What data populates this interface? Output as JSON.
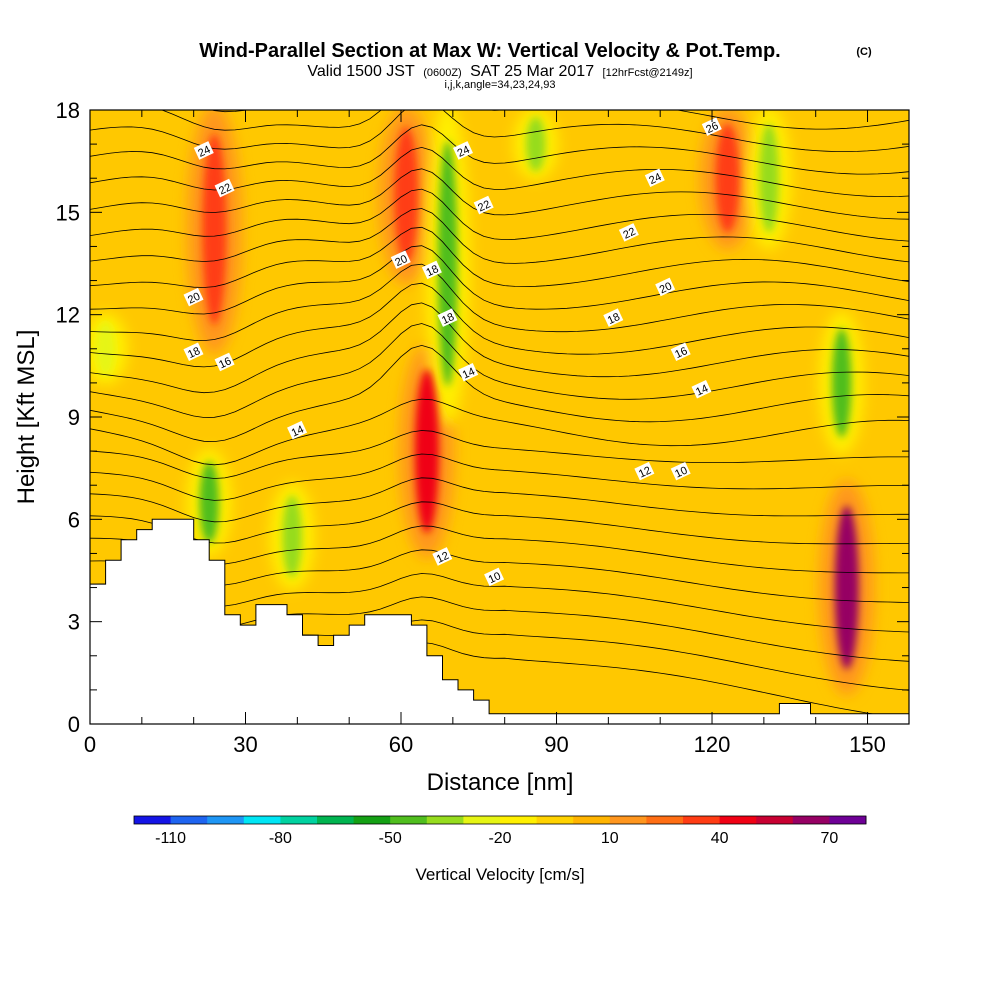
{
  "header": {
    "title": "Wind-Parallel Section at Max W: Vertical Velocity & Pot.Temp.",
    "title_suffix": "(C)",
    "valid_prefix": "Valid 1500 JST",
    "valid_utc": "(0600Z)",
    "valid_date": "SAT 25 Mar 2017",
    "forecast": "[12hrFcst@2149z]",
    "indices": "i,j,k,angle=34,23,24,93"
  },
  "chart_data": {
    "type": "heatmap",
    "xlabel": "Distance [nm]",
    "ylabel": "Height [Kft MSL]",
    "xlim": [
      0,
      158
    ],
    "ylim": [
      0,
      18
    ],
    "x_ticks": [
      0,
      30,
      60,
      90,
      120,
      150
    ],
    "y_ticks": [
      0,
      3,
      6,
      9,
      12,
      15,
      18
    ],
    "colorbar": {
      "label": "Vertical Velocity [cm/s]",
      "tick_labels": [
        "-110",
        "-80",
        "-50",
        "-20",
        "10",
        "40",
        "70"
      ],
      "tick_values": [
        -110,
        -80,
        -50,
        -20,
        10,
        40,
        70
      ],
      "levels": [
        -110,
        -100,
        -90,
        -80,
        -70,
        -60,
        -50,
        -40,
        -30,
        -20,
        -10,
        0,
        10,
        20,
        30,
        40,
        50,
        60,
        70,
        80
      ],
      "colors": [
        "#1414e6",
        "#1e64f0",
        "#1e96f5",
        "#00e6f5",
        "#00d2a0",
        "#00b450",
        "#14a014",
        "#50be1e",
        "#96dc1e",
        "#e6f514",
        "#fff000",
        "#ffd200",
        "#ffb400",
        "#ff961e",
        "#ff6e14",
        "#ff3c14",
        "#f00014",
        "#c80032",
        "#960064",
        "#6e0096"
      ]
    },
    "features": [
      {
        "kind": "updraft",
        "x": 24,
        "y_min": 11,
        "y_max": 18,
        "max_w": 40
      },
      {
        "kind": "updraft",
        "x": 61,
        "y_min": 13,
        "y_max": 18,
        "max_w": 40
      },
      {
        "kind": "updraft",
        "x": 65,
        "y_min": 5,
        "y_max": 11,
        "max_w": 50
      },
      {
        "kind": "updraft",
        "x": 123,
        "y_min": 14,
        "y_max": 18,
        "max_w": 40
      },
      {
        "kind": "updraft",
        "x": 146,
        "y_min": 1,
        "y_max": 7,
        "max_w": 70
      },
      {
        "kind": "downdraft",
        "x": 69,
        "y_min": 9,
        "y_max": 18,
        "min_w": -40
      },
      {
        "kind": "downdraft",
        "x": 23,
        "y_min": 5,
        "y_max": 8,
        "min_w": -40
      },
      {
        "kind": "downdraft",
        "x": 145,
        "y_min": 8,
        "y_max": 12,
        "min_w": -40
      },
      {
        "kind": "downdraft",
        "x": 86,
        "y_min": 16,
        "y_max": 18,
        "min_w": -30
      },
      {
        "kind": "downdraft",
        "x": 131,
        "y_min": 14,
        "y_max": 18,
        "min_w": -30
      },
      {
        "kind": "downdraft",
        "x": 39,
        "y_min": 4,
        "y_max": 7,
        "min_w": -30
      },
      {
        "kind": "downdraft",
        "x": 3,
        "y_min": 10,
        "y_max": 12,
        "min_w": -20
      }
    ],
    "isentrope_labels": [
      "24",
      "22",
      "20",
      "18",
      "16",
      "14",
      "24",
      "22",
      "20",
      "18",
      "18",
      "14",
      "12",
      "10",
      "26",
      "24",
      "22",
      "20",
      "18",
      "16",
      "14",
      "12",
      "10"
    ],
    "terrain_heights_kft": [
      {
        "x": 0,
        "h": 4.1
      },
      {
        "x": 3,
        "h": 4.8
      },
      {
        "x": 6,
        "h": 5.4
      },
      {
        "x": 9,
        "h": 5.7
      },
      {
        "x": 12,
        "h": 6.0
      },
      {
        "x": 20,
        "h": 5.4
      },
      {
        "x": 23,
        "h": 4.8
      },
      {
        "x": 26,
        "h": 3.2
      },
      {
        "x": 29,
        "h": 2.9
      },
      {
        "x": 32,
        "h": 3.5
      },
      {
        "x": 38,
        "h": 3.2
      },
      {
        "x": 41,
        "h": 2.6
      },
      {
        "x": 44,
        "h": 2.3
      },
      {
        "x": 47,
        "h": 2.6
      },
      {
        "x": 50,
        "h": 2.9
      },
      {
        "x": 53,
        "h": 3.2
      },
      {
        "x": 62,
        "h": 2.9
      },
      {
        "x": 65,
        "h": 2.0
      },
      {
        "x": 68,
        "h": 1.3
      },
      {
        "x": 71,
        "h": 1.0
      },
      {
        "x": 74,
        "h": 0.7
      },
      {
        "x": 77,
        "h": 0.3
      },
      {
        "x": 82,
        "h": 0.3
      },
      {
        "x": 133,
        "h": 0.6
      },
      {
        "x": 139,
        "h": 0.3
      },
      {
        "x": 158,
        "h": 0.3
      }
    ]
  }
}
